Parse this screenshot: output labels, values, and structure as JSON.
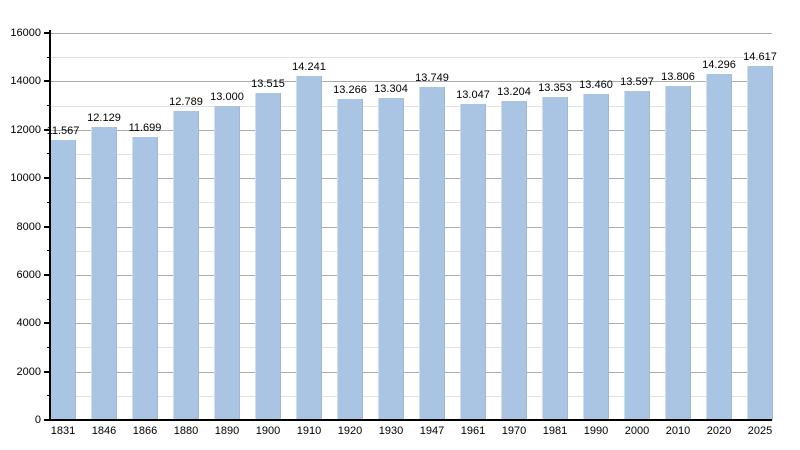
{
  "chart_data": {
    "type": "bar",
    "title": "",
    "xlabel": "",
    "ylabel": "",
    "categories": [
      "1831",
      "1846",
      "1866",
      "1880",
      "1890",
      "1900",
      "1910",
      "1920",
      "1930",
      "1947",
      "1961",
      "1970",
      "1981",
      "1990",
      "2000",
      "2010",
      "2020",
      "2025"
    ],
    "values": [
      11567,
      12129,
      11699,
      12789,
      13000,
      13515,
      14241,
      13266,
      13304,
      13749,
      13047,
      13204,
      13353,
      13460,
      13597,
      13806,
      14296,
      14617
    ],
    "value_labels": [
      "11.567",
      "12.129",
      "11.699",
      "12.789",
      "13.000",
      "13.515",
      "14.241",
      "13.266",
      "13.304",
      "13.749",
      "13.047",
      "13.204",
      "13.353",
      "13.460",
      "13.597",
      "13.806",
      "14.296",
      "14.617"
    ],
    "ylim": [
      0,
      16000
    ],
    "y_major_step": 2000,
    "y_minor_step": 1000,
    "y_tick_labels": [
      "0",
      "2000",
      "4000",
      "6000",
      "8000",
      "10000",
      "12000",
      "14000",
      "16000"
    ],
    "grid": true,
    "legend": false,
    "colors": {
      "bar_fill": "#a9c5e3",
      "major_grid": "#ababab",
      "minor_grid": "#e2e2e2",
      "axis": "#000000",
      "background": "#ffffff",
      "text": "#000000"
    }
  }
}
